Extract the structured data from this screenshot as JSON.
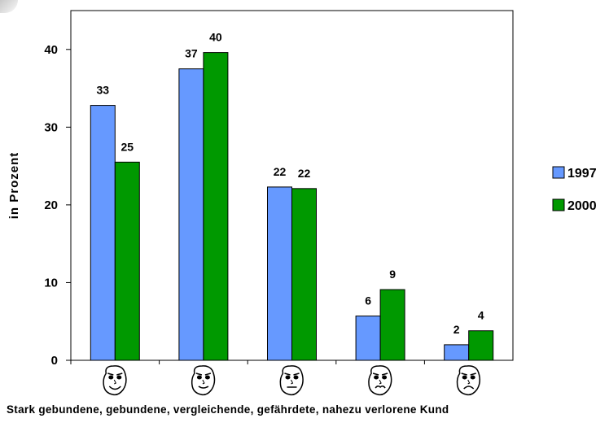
{
  "chart_data": {
    "type": "bar",
    "categories": [
      "Stark gebundene",
      "gebundene",
      "vergleichende",
      "gefährdete",
      "nahezu verlorene Kund"
    ],
    "series": [
      {
        "name": "1997",
        "values": [
          33,
          37,
          22,
          6,
          2
        ],
        "labels": [
          "33",
          "37",
          "22",
          "6",
          "2"
        ],
        "color": "#6699ff"
      },
      {
        "name": "2000",
        "values": [
          25,
          40,
          22,
          9,
          4
        ],
        "labels": [
          "25",
          "40",
          "22",
          "9",
          "4"
        ],
        "color": "#009900"
      }
    ],
    "plotted_values": [
      [
        32.8,
        37.5,
        22.3,
        5.7,
        2.0
      ],
      [
        25.5,
        39.6,
        22.1,
        9.1,
        3.8
      ]
    ],
    "ylabel": "in Prozent",
    "ylim": [
      0,
      45
    ],
    "yticks": [
      0,
      10,
      20,
      30,
      40
    ],
    "ytick_labels": [
      "0",
      "10",
      "20",
      "30",
      "40"
    ],
    "grid": false,
    "legend_position": "right",
    "category_icons": [
      "very-happy-face-icon",
      "happy-face-icon",
      "neutral-face-icon",
      "worried-face-icon",
      "sad-face-icon"
    ],
    "caption": "Stark gebundene,  gebundene,  vergleichende,  gefährdete,  nahezu verlorene Kund"
  }
}
